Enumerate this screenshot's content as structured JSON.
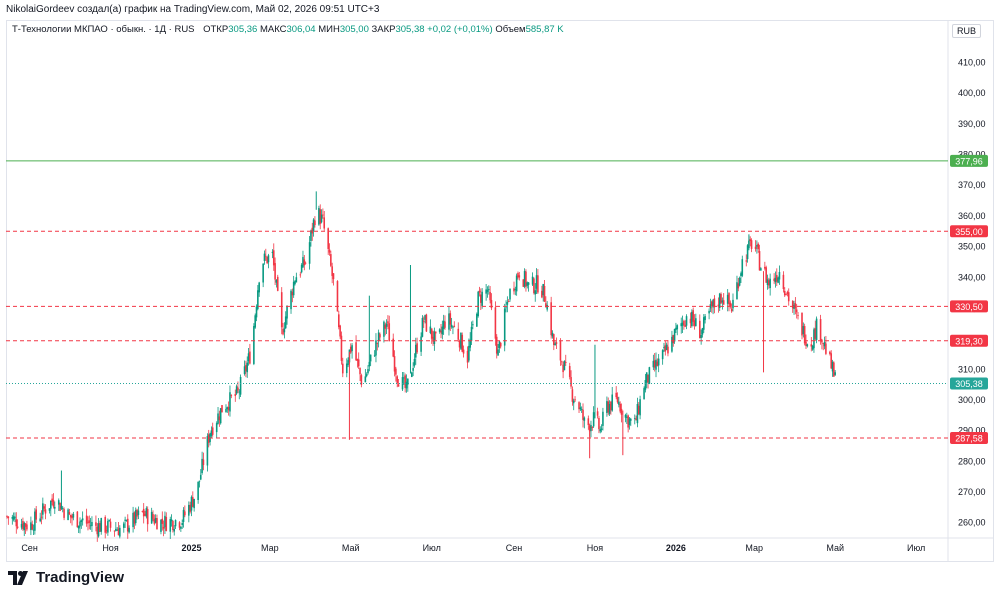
{
  "caption": "NikolaiGordeev создал(а) график на TradingView.com, Май 02, 2026 09:51 UTC+3",
  "legend": {
    "symbol": "Т-Технологии МКПАО · обыкн. · 1Д · RUS",
    "open_label": "ОТКР",
    "open": "305,36",
    "high_label": "МАКС",
    "high": "306,04",
    "low_label": "МИН",
    "low": "305,00",
    "close_label": "ЗАКР",
    "close": "305,38",
    "change": "+0,02 (+0,01%)",
    "volume_label": "Объем",
    "volume": "585,87 K"
  },
  "currency": "RUB",
  "logo_text": "TradingView",
  "colors": {
    "up": "#089981",
    "down": "#f23645",
    "green_line": "#4caf50",
    "red_line": "#f23645",
    "price_line": "#26a69a"
  },
  "chart_data": {
    "type": "candlestick",
    "title": "Т-Технологии МКПАО · обыкн. · 1Д · RUS",
    "currency": "RUB",
    "ylim": [
      255,
      418
    ],
    "y_ticks": [
      260,
      270,
      280,
      290,
      300,
      310,
      320,
      330,
      340,
      350,
      360,
      370,
      380,
      390,
      400,
      410
    ],
    "y_tick_labels": [
      "260,00",
      "270,00",
      "280,00",
      "290,00",
      "300,00",
      "310,00",
      "320,00",
      "330,00",
      "340,00",
      "350,00",
      "360,00",
      "370,00",
      "380,00",
      "390,00",
      "400,00",
      "410,00"
    ],
    "x_domain": [
      "2024-08-15",
      "2026-07-25"
    ],
    "x_ticks": [
      {
        "date": "2024-09-01",
        "label": "Сен"
      },
      {
        "date": "2024-11-01",
        "label": "Ноя"
      },
      {
        "date": "2025-01-01",
        "label": "2025"
      },
      {
        "date": "2025-03-01",
        "label": "Мар"
      },
      {
        "date": "2025-05-01",
        "label": "Май"
      },
      {
        "date": "2025-07-01",
        "label": "Июл"
      },
      {
        "date": "2025-09-01",
        "label": "Сен"
      },
      {
        "date": "2025-11-01",
        "label": "Ноя"
      },
      {
        "date": "2026-01-01",
        "label": "2026"
      },
      {
        "date": "2026-03-01",
        "label": "Мар"
      },
      {
        "date": "2026-05-01",
        "label": "Май"
      },
      {
        "date": "2026-07-01",
        "label": "Июл"
      }
    ],
    "price_path": [
      {
        "date": "2024-08-15",
        "close": 262
      },
      {
        "date": "2024-09-01",
        "close": 259
      },
      {
        "date": "2024-09-20",
        "close": 268
      },
      {
        "date": "2024-10-01",
        "close": 262
      },
      {
        "date": "2024-10-20",
        "close": 259
      },
      {
        "date": "2024-11-10",
        "close": 258
      },
      {
        "date": "2024-11-25",
        "close": 263
      },
      {
        "date": "2024-12-10",
        "close": 260
      },
      {
        "date": "2024-12-25",
        "close": 261
      },
      {
        "date": "2025-01-05",
        "close": 270
      },
      {
        "date": "2025-01-15",
        "close": 290
      },
      {
        "date": "2025-01-25",
        "close": 298
      },
      {
        "date": "2025-02-05",
        "close": 302
      },
      {
        "date": "2025-02-15",
        "close": 316
      },
      {
        "date": "2025-02-22",
        "close": 345
      },
      {
        "date": "2025-03-03",
        "close": 347
      },
      {
        "date": "2025-03-10",
        "close": 322
      },
      {
        "date": "2025-03-20",
        "close": 340
      },
      {
        "date": "2025-03-28",
        "close": 345
      },
      {
        "date": "2025-04-05",
        "close": 362
      },
      {
        "date": "2025-04-10",
        "close": 358
      },
      {
        "date": "2025-04-18",
        "close": 338
      },
      {
        "date": "2025-04-25",
        "close": 310
      },
      {
        "date": "2025-05-02",
        "close": 318
      },
      {
        "date": "2025-05-10",
        "close": 305
      },
      {
        "date": "2025-05-20",
        "close": 318
      },
      {
        "date": "2025-05-28",
        "close": 325
      },
      {
        "date": "2025-06-05",
        "close": 308
      },
      {
        "date": "2025-06-12",
        "close": 303
      },
      {
        "date": "2025-06-20",
        "close": 318
      },
      {
        "date": "2025-06-25",
        "close": 326
      },
      {
        "date": "2025-07-05",
        "close": 318
      },
      {
        "date": "2025-07-12",
        "close": 327
      },
      {
        "date": "2025-07-20",
        "close": 322
      },
      {
        "date": "2025-07-28",
        "close": 314
      },
      {
        "date": "2025-08-05",
        "close": 333
      },
      {
        "date": "2025-08-12",
        "close": 336
      },
      {
        "date": "2025-08-20",
        "close": 315
      },
      {
        "date": "2025-08-28",
        "close": 334
      },
      {
        "date": "2025-09-05",
        "close": 342
      },
      {
        "date": "2025-09-12",
        "close": 337
      },
      {
        "date": "2025-09-20",
        "close": 338
      },
      {
        "date": "2025-09-25",
        "close": 333
      },
      {
        "date": "2025-10-01",
        "close": 318
      },
      {
        "date": "2025-10-08",
        "close": 312
      },
      {
        "date": "2025-10-15",
        "close": 302
      },
      {
        "date": "2025-10-20",
        "close": 298
      },
      {
        "date": "2025-10-25",
        "close": 291
      },
      {
        "date": "2025-11-01",
        "close": 294
      },
      {
        "date": "2025-11-05",
        "close": 290
      },
      {
        "date": "2025-11-10",
        "close": 298
      },
      {
        "date": "2025-11-18",
        "close": 300
      },
      {
        "date": "2025-11-25",
        "close": 294
      },
      {
        "date": "2025-12-01",
        "close": 292
      },
      {
        "date": "2025-12-08",
        "close": 305
      },
      {
        "date": "2025-12-15",
        "close": 310
      },
      {
        "date": "2025-12-22",
        "close": 314
      },
      {
        "date": "2026-01-01",
        "close": 322
      },
      {
        "date": "2026-01-10",
        "close": 328
      },
      {
        "date": "2026-01-20",
        "close": 322
      },
      {
        "date": "2026-01-28",
        "close": 330
      },
      {
        "date": "2026-02-05",
        "close": 334
      },
      {
        "date": "2026-02-12",
        "close": 330
      },
      {
        "date": "2026-02-20",
        "close": 345
      },
      {
        "date": "2026-02-28",
        "close": 352
      },
      {
        "date": "2026-03-05",
        "close": 345
      },
      {
        "date": "2026-03-12",
        "close": 338
      },
      {
        "date": "2026-03-20",
        "close": 342
      },
      {
        "date": "2026-03-28",
        "close": 332
      },
      {
        "date": "2026-04-05",
        "close": 324
      },
      {
        "date": "2026-04-12",
        "close": 318
      },
      {
        "date": "2026-04-18",
        "close": 325
      },
      {
        "date": "2026-04-25",
        "close": 315
      },
      {
        "date": "2026-05-02",
        "close": 305.38
      }
    ],
    "wick_spikes": [
      {
        "date": "2024-09-25",
        "high": 277
      },
      {
        "date": "2025-04-05",
        "high": 368
      },
      {
        "date": "2025-04-30",
        "low": 287
      },
      {
        "date": "2025-05-15",
        "high": 334
      },
      {
        "date": "2025-06-15",
        "high": 344
      },
      {
        "date": "2025-10-28",
        "low": 281
      },
      {
        "date": "2025-11-01",
        "high": 318
      },
      {
        "date": "2025-11-22",
        "low": 282
      },
      {
        "date": "2026-03-08",
        "low": 309
      },
      {
        "date": "2026-02-25",
        "high": 354
      }
    ],
    "levels": [
      {
        "value": 377.96,
        "label": "377,96",
        "style": "solid",
        "color": "#4caf50"
      },
      {
        "value": 355.0,
        "label": "355,00",
        "style": "dashed",
        "color": "#f23645"
      },
      {
        "value": 330.5,
        "label": "330,50",
        "style": "dashed",
        "color": "#f23645"
      },
      {
        "value": 319.3,
        "label": "319,30",
        "style": "dashed",
        "color": "#f23645"
      },
      {
        "value": 305.38,
        "label": "305,38",
        "style": "dotted",
        "color": "#26a69a"
      },
      {
        "value": 287.58,
        "label": "287,58",
        "style": "dashed",
        "color": "#f23645"
      }
    ]
  }
}
